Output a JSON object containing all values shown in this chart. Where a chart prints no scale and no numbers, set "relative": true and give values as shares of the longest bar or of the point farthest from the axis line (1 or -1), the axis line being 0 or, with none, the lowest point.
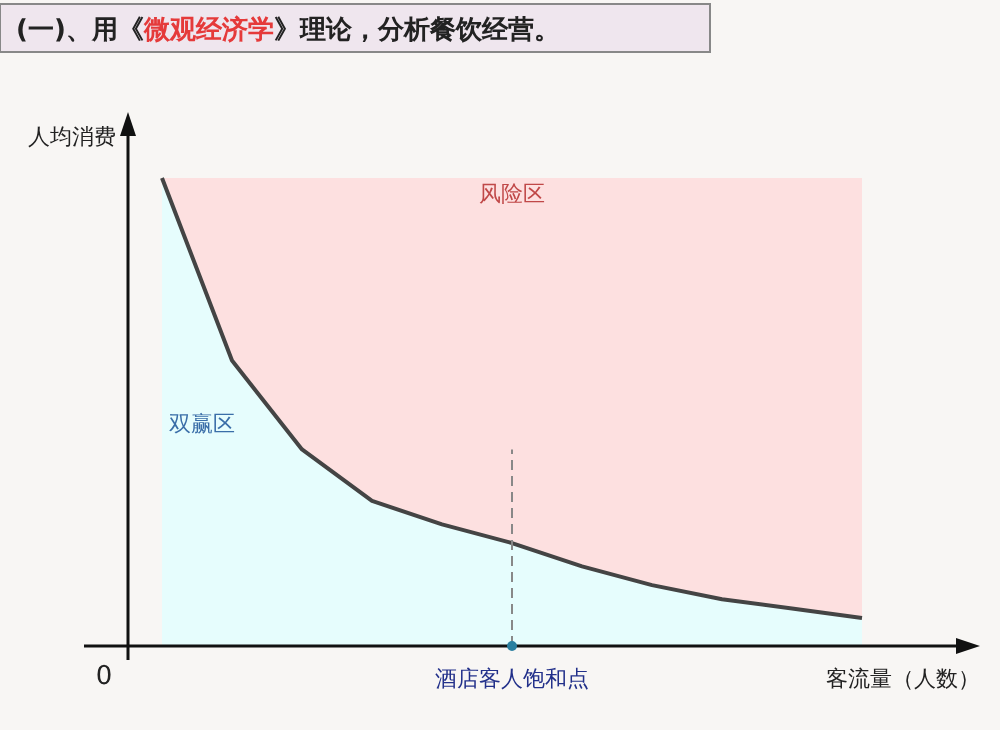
{
  "chart_data": {
    "type": "area",
    "title": "(一)、用《微观经济学》理论，分析餐饮经营。",
    "xlabel": "客流量（人数）",
    "ylabel": "人均消费",
    "relative": true,
    "stacked": true,
    "categories": [
      null,
      null,
      null,
      null,
      null,
      null,
      null,
      null,
      null,
      null,
      null
    ],
    "series": [
      {
        "type": "area",
        "color": "#e6fdfd",
        "values": [
          1,
          0.61,
          0.42,
          0.31,
          0.26,
          0.22,
          0.17,
          0.13,
          0.1,
          0.08,
          0.06
        ]
      },
      {
        "type": "area",
        "color": "#fde0e0",
        "values": [
          0,
          0.39,
          0.58,
          0.69,
          0.74,
          0.78,
          0.83,
          0.87,
          0.9,
          0.92,
          0.94
        ]
      }
    ],
    "annotations": [
      "风险区",
      "双赢区",
      "0",
      "酒店客人饱和点"
    ]
  }
}
